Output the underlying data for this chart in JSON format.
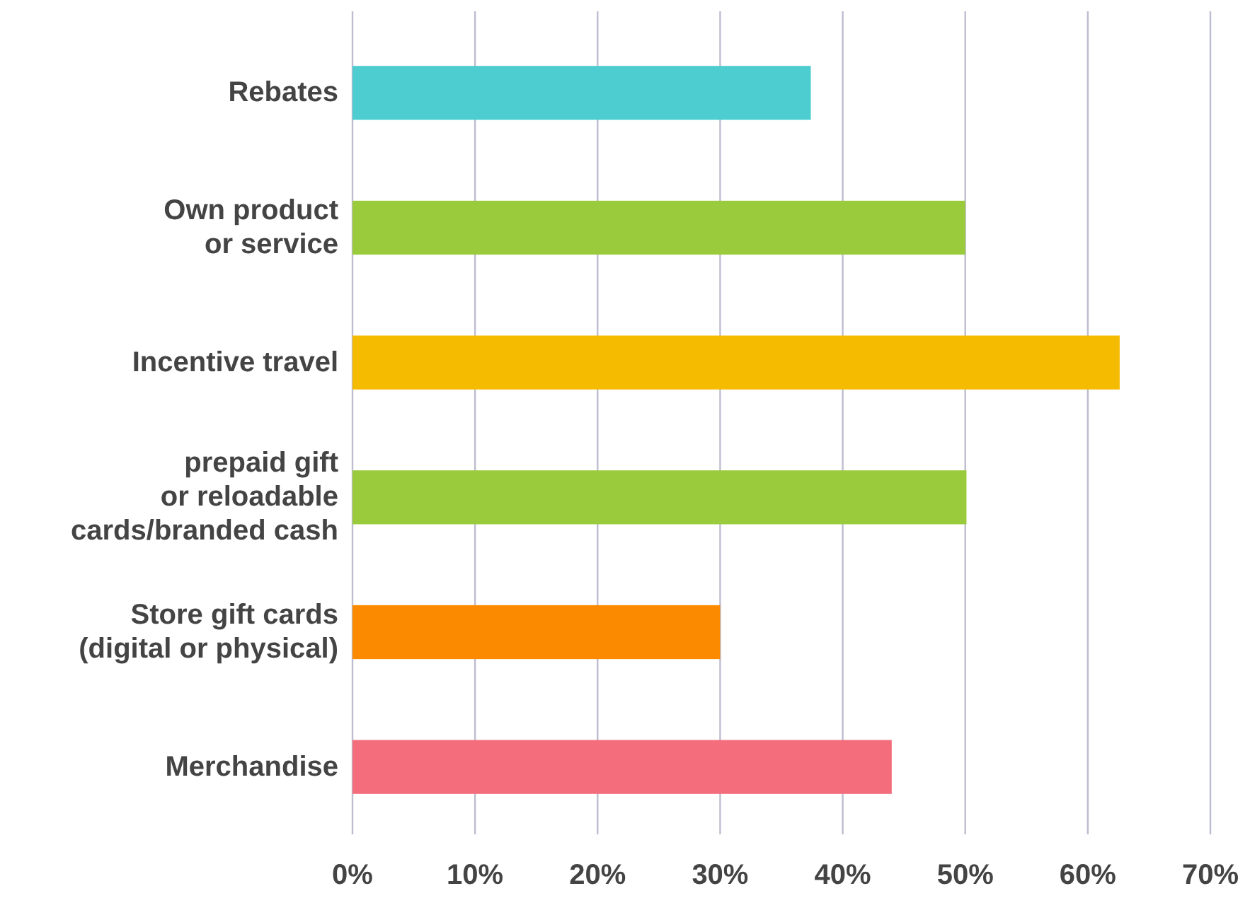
{
  "chart_data": {
    "type": "bar",
    "orientation": "horizontal",
    "categories": [
      "Rebates",
      "Own product\nor service",
      "Incentive travel",
      "prepaid gift\nor reloadable\ncards/branded cash",
      "Store gift cards\n(digital or physical)",
      "Merchandise"
    ],
    "values": [
      37.4,
      50,
      62.6,
      50.1,
      30,
      44
    ],
    "colors": [
      "#4ecdd0",
      "#9acb3c",
      "#f5bb00",
      "#9acb3c",
      "#fb8a00",
      "#f46d7d"
    ],
    "xlim": [
      0,
      70
    ],
    "xticks": [
      {
        "value": 0,
        "label": "0%"
      },
      {
        "value": 10,
        "label": "10%"
      },
      {
        "value": 20,
        "label": "20%"
      },
      {
        "value": 30,
        "label": "30%"
      },
      {
        "value": 40,
        "label": "40%"
      },
      {
        "value": 50,
        "label": "50%"
      },
      {
        "value": 60,
        "label": "60%"
      },
      {
        "value": 70,
        "label": "70%"
      }
    ],
    "grid": "x"
  }
}
